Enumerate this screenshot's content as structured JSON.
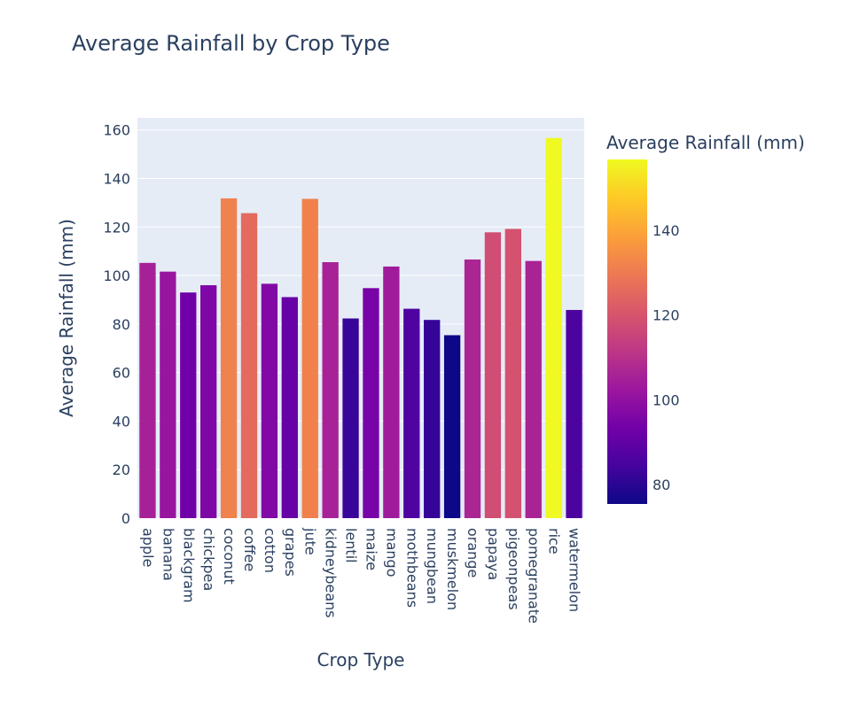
{
  "chart_data": {
    "type": "bar",
    "title": "Average Rainfall by Crop Type",
    "xlabel": "Crop Type",
    "ylabel": "Average Rainfall (mm)",
    "ylim": [
      0,
      165
    ],
    "yticks": [
      0,
      20,
      40,
      60,
      80,
      100,
      120,
      140,
      160
    ],
    "categories": [
      "apple",
      "banana",
      "blackgram",
      "chickpea",
      "coconut",
      "coffee",
      "cotton",
      "grapes",
      "jute",
      "kidneybeans",
      "lentil",
      "maize",
      "mango",
      "mothbeans",
      "mungbean",
      "muskmelon",
      "orange",
      "papaya",
      "pigeonpeas",
      "pomegranate",
      "rice",
      "watermelon"
    ],
    "values": [
      105.2,
      101.6,
      93.0,
      96.0,
      131.8,
      125.7,
      96.6,
      91.1,
      131.6,
      105.5,
      82.3,
      94.8,
      103.7,
      86.3,
      81.7,
      75.4,
      106.6,
      117.8,
      119.2,
      106.0,
      156.7,
      85.8
    ],
    "colorscale": "plasma",
    "colorbar": {
      "title": "Average Rainfall (mm)",
      "range": [
        75.4,
        156.7
      ],
      "ticks": [
        80,
        100,
        120,
        140
      ]
    },
    "grid": true,
    "plot_bgcolor": "#e5ecf6"
  }
}
